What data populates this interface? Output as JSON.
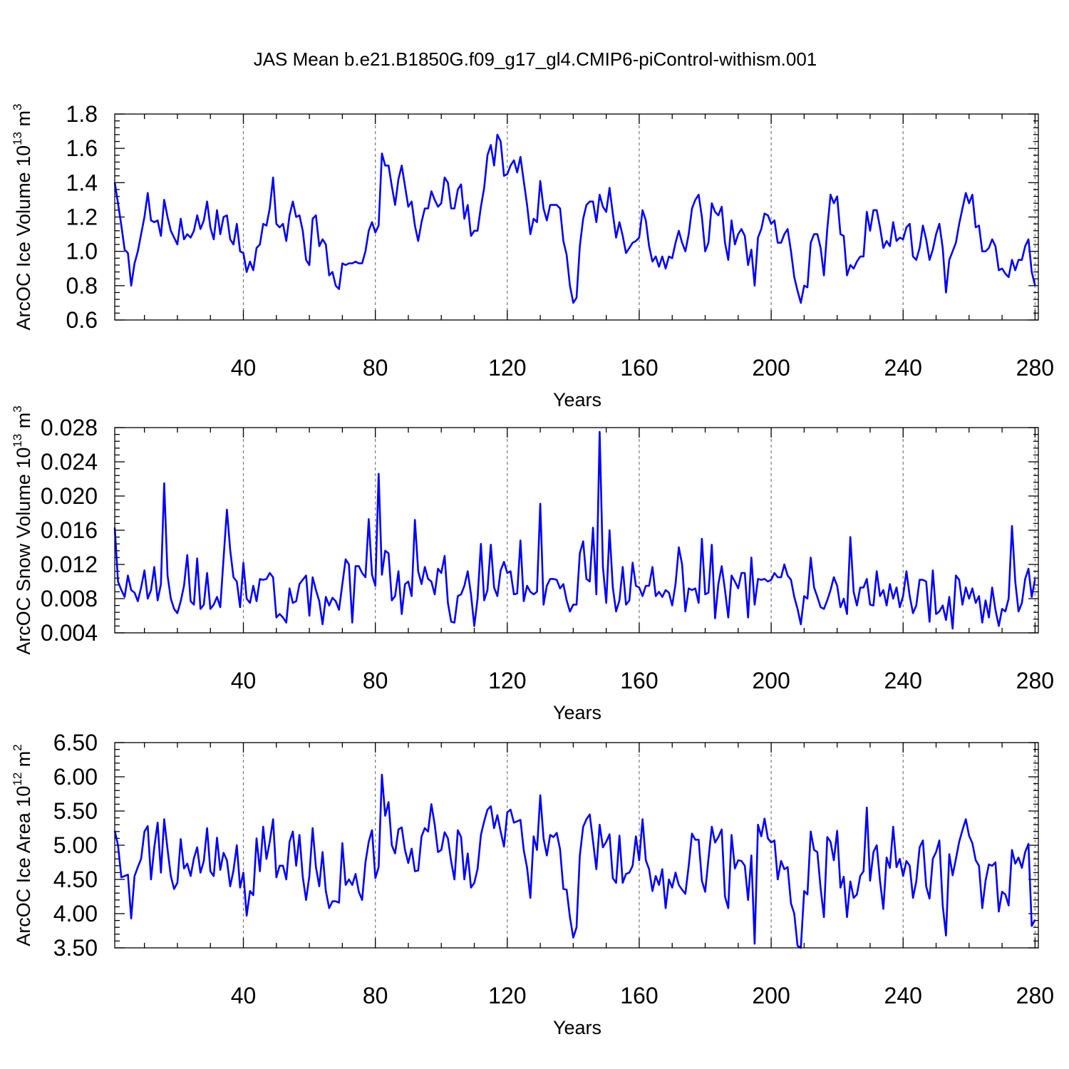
{
  "title": "JAS Mean b.e21.B1850G.f09_g17_gl4.CMIP6-piControl-withism.001",
  "line_color": "#0000ff",
  "chart_data": [
    {
      "type": "line",
      "title": "JAS Mean b.e21.B1850G.f09_g17_gl4.CMIP6-piControl-withism.001",
      "xlabel": "Years",
      "ylabel": "ArcOC Ice Volume 10",
      "ylabel_sup": "13",
      "ylabel_unit": "m",
      "ylabel_unit_sup": "3",
      "xlim": [
        1,
        281
      ],
      "ylim": [
        0.6,
        1.8
      ],
      "xticks": [
        40,
        80,
        120,
        160,
        200,
        240,
        280
      ],
      "xtick_labels": [
        "40",
        "80",
        "120",
        "160",
        "200",
        "240",
        "280"
      ],
      "yticks": [
        0.6,
        0.8,
        1.0,
        1.2,
        1.4,
        1.6,
        1.8
      ],
      "ytick_labels": [
        "0.6",
        "0.8",
        "1.0",
        "1.2",
        "1.4",
        "1.6",
        "1.8"
      ],
      "grid": "vertical dashed at major x ticks",
      "x_start": 1,
      "values": [
        1.4,
        1.28,
        1.15,
        1.01,
        0.99,
        0.8,
        0.93,
        1.0,
        1.1,
        1.2,
        1.34,
        1.18,
        1.17,
        1.18,
        1.09,
        1.3,
        1.2,
        1.12,
        1.08,
        1.04,
        1.19,
        1.07,
        1.1,
        1.08,
        1.12,
        1.21,
        1.13,
        1.18,
        1.29,
        1.14,
        1.07,
        1.24,
        1.1,
        1.2,
        1.21,
        1.07,
        1.04,
        1.16,
        1.0,
        0.99,
        0.88,
        0.94,
        0.89,
        1.02,
        1.04,
        1.16,
        1.15,
        1.25,
        1.43,
        1.16,
        1.14,
        1.16,
        1.06,
        1.21,
        1.29,
        1.2,
        1.21,
        1.12,
        0.95,
        0.92,
        1.19,
        1.21,
        1.03,
        1.07,
        1.04,
        0.86,
        0.88,
        0.8,
        0.78,
        0.93,
        0.92,
        0.93,
        0.93,
        0.94,
        0.93,
        0.93,
        1.0,
        1.12,
        1.17,
        1.11,
        1.15,
        1.57,
        1.5,
        1.5,
        1.38,
        1.27,
        1.42,
        1.5,
        1.38,
        1.26,
        1.29,
        1.15,
        1.06,
        1.17,
        1.25,
        1.25,
        1.35,
        1.3,
        1.26,
        1.28,
        1.43,
        1.4,
        1.25,
        1.25,
        1.36,
        1.39,
        1.19,
        1.27,
        1.09,
        1.12,
        1.12,
        1.26,
        1.37,
        1.56,
        1.62,
        1.5,
        1.68,
        1.64,
        1.44,
        1.45,
        1.5,
        1.53,
        1.46,
        1.55,
        1.41,
        1.27,
        1.1,
        1.19,
        1.17,
        1.41,
        1.25,
        1.18,
        1.27,
        1.27,
        1.27,
        1.25,
        1.06,
        0.98,
        0.8,
        0.7,
        0.73,
        1.03,
        1.19,
        1.27,
        1.29,
        1.29,
        1.17,
        1.33,
        1.26,
        1.23,
        1.37,
        1.22,
        1.08,
        1.17,
        1.09,
        0.99,
        1.02,
        1.05,
        1.06,
        1.08,
        1.24,
        1.18,
        1.03,
        0.94,
        0.97,
        0.91,
        0.97,
        0.9,
        0.97,
        0.96,
        1.05,
        1.12,
        1.05,
        1.0,
        1.1,
        1.25,
        1.3,
        1.33,
        1.2,
        1.0,
        1.05,
        1.28,
        1.23,
        1.21,
        1.26,
        1.05,
        0.95,
        1.18,
        1.04,
        1.1,
        1.13,
        1.09,
        0.92,
        1.01,
        0.8,
        1.08,
        1.13,
        1.22,
        1.21,
        1.16,
        1.18,
        1.05,
        1.05,
        1.1,
        1.13,
        1.0,
        0.85,
        0.77,
        0.7,
        0.8,
        0.79,
        1.05,
        1.1,
        1.1,
        1.02,
        0.86,
        1.13,
        1.33,
        1.28,
        1.32,
        1.1,
        1.09,
        0.86,
        0.92,
        0.9,
        0.94,
        0.97,
        0.97,
        1.23,
        1.12,
        1.24,
        1.24,
        1.14,
        1.02,
        1.06,
        1.03,
        1.17,
        1.06,
        1.08,
        1.07,
        1.14,
        1.16,
        0.97,
        0.95,
        1.02,
        1.15,
        1.07,
        0.95,
        1.01,
        1.1,
        1.16,
        1.02,
        0.76,
        0.95,
        1.0,
        1.05,
        1.16,
        1.25,
        1.34,
        1.28,
        1.33,
        1.14,
        1.15,
        1.0,
        1.0,
        1.02,
        1.07,
        1.03,
        0.89,
        0.9,
        0.87,
        0.85,
        0.95,
        0.89,
        0.95,
        0.95,
        1.03,
        1.07,
        0.88,
        0.8
      ]
    },
    {
      "type": "line",
      "xlabel": "Years",
      "ylabel": "ArcOC Snow Volume 10",
      "ylabel_sup": "13",
      "ylabel_unit": "m",
      "ylabel_unit_sup": "3",
      "xlim": [
        1,
        281
      ],
      "ylim": [
        0.004,
        0.028
      ],
      "xticks": [
        40,
        80,
        120,
        160,
        200,
        240,
        280
      ],
      "xtick_labels": [
        "40",
        "80",
        "120",
        "160",
        "200",
        "240",
        "280"
      ],
      "yticks": [
        0.004,
        0.008,
        0.012,
        0.016,
        0.02,
        0.024,
        0.028
      ],
      "ytick_labels": [
        "0.004",
        "0.008",
        "0.012",
        "0.016",
        "0.020",
        "0.024",
        "0.028"
      ],
      "grid": "vertical dashed at major x ticks",
      "x_start": 1,
      "values": [
        0.0163,
        0.01,
        0.009,
        0.0082,
        0.0107,
        0.009,
        0.0087,
        0.0077,
        0.0093,
        0.0113,
        0.008,
        0.009,
        0.0117,
        0.0078,
        0.0097,
        0.0215,
        0.0107,
        0.008,
        0.0068,
        0.0063,
        0.0077,
        0.0095,
        0.0131,
        0.0077,
        0.0073,
        0.0127,
        0.0068,
        0.0073,
        0.011,
        0.0068,
        0.0073,
        0.0082,
        0.007,
        0.0127,
        0.0184,
        0.0137,
        0.0105,
        0.01,
        0.007,
        0.0122,
        0.008,
        0.0075,
        0.0095,
        0.0077,
        0.0103,
        0.0102,
        0.0103,
        0.011,
        0.0105,
        0.0058,
        0.0062,
        0.0058,
        0.0052,
        0.0092,
        0.0075,
        0.0077,
        0.0097,
        0.0102,
        0.0107,
        0.006,
        0.0105,
        0.009,
        0.0077,
        0.005,
        0.0082,
        0.0072,
        0.0081,
        0.0077,
        0.0067,
        0.0097,
        0.0126,
        0.012,
        0.0052,
        0.0118,
        0.0118,
        0.011,
        0.0105,
        0.0173,
        0.0108,
        0.0095,
        0.0226,
        0.0108,
        0.0136,
        0.0133,
        0.0078,
        0.0083,
        0.0112,
        0.0062,
        0.0097,
        0.01,
        0.0083,
        0.0172,
        0.0112,
        0.0097,
        0.0117,
        0.0103,
        0.01,
        0.0085,
        0.0115,
        0.011,
        0.013,
        0.0075,
        0.0053,
        0.0052,
        0.0083,
        0.0085,
        0.0095,
        0.0112,
        0.0085,
        0.0048,
        0.008,
        0.0144,
        0.0078,
        0.009,
        0.0143,
        0.0093,
        0.0083,
        0.0113,
        0.0123,
        0.011,
        0.0112,
        0.0085,
        0.0086,
        0.0148,
        0.0077,
        0.0095,
        0.0088,
        0.0085,
        0.0088,
        0.0191,
        0.0073,
        0.0095,
        0.0103,
        0.0103,
        0.0102,
        0.0092,
        0.0097,
        0.0078,
        0.0065,
        0.0073,
        0.0073,
        0.0133,
        0.0147,
        0.0103,
        0.01,
        0.0163,
        0.0085,
        0.0275,
        0.0117,
        0.0075,
        0.016,
        0.0093,
        0.0065,
        0.0078,
        0.0117,
        0.0073,
        0.0078,
        0.0122,
        0.0095,
        0.0093,
        0.0083,
        0.0095,
        0.0095,
        0.0117,
        0.0083,
        0.0088,
        0.0082,
        0.009,
        0.0087,
        0.0072,
        0.0097,
        0.014,
        0.012,
        0.0065,
        0.0092,
        0.009,
        0.0092,
        0.0075,
        0.015,
        0.0085,
        0.0087,
        0.0143,
        0.0057,
        0.0097,
        0.0118,
        0.009,
        0.0058,
        0.0107,
        0.01,
        0.0092,
        0.011,
        0.011,
        0.0058,
        0.0128,
        0.0073,
        0.0103,
        0.0102,
        0.0103,
        0.01,
        0.0102,
        0.011,
        0.0105,
        0.0105,
        0.012,
        0.0107,
        0.0102,
        0.0082,
        0.0068,
        0.005,
        0.0083,
        0.008,
        0.0128,
        0.0093,
        0.0082,
        0.007,
        0.0068,
        0.0078,
        0.009,
        0.0105,
        0.0095,
        0.007,
        0.008,
        0.0062,
        0.0152,
        0.0088,
        0.0072,
        0.0093,
        0.0093,
        0.0103,
        0.0073,
        0.0072,
        0.0112,
        0.0083,
        0.009,
        0.0072,
        0.0097,
        0.008,
        0.0093,
        0.007,
        0.0083,
        0.0112,
        0.0083,
        0.0063,
        0.0072,
        0.0102,
        0.0102,
        0.01,
        0.0053,
        0.0113,
        0.0062,
        0.0065,
        0.0072,
        0.0055,
        0.0082,
        0.0045,
        0.0107,
        0.0102,
        0.0073,
        0.0093,
        0.008,
        0.0092,
        0.0075,
        0.0083,
        0.0052,
        0.0078,
        0.0058,
        0.0093,
        0.0067,
        0.0048,
        0.0068,
        0.0065,
        0.008,
        0.0165,
        0.01,
        0.0065,
        0.0075,
        0.0103,
        0.0115,
        0.0082,
        0.0103
      ]
    },
    {
      "type": "line",
      "xlabel": "Years",
      "ylabel": "ArcOC Ice Area 10",
      "ylabel_sup": "12",
      "ylabel_unit": "m",
      "ylabel_unit_sup": "2",
      "xlim": [
        1,
        281
      ],
      "ylim": [
        3.5,
        6.5
      ],
      "xticks": [
        40,
        80,
        120,
        160,
        200,
        240,
        280
      ],
      "xtick_labels": [
        "40",
        "80",
        "120",
        "160",
        "200",
        "240",
        "280"
      ],
      "yticks": [
        3.5,
        4.0,
        4.5,
        5.0,
        5.5,
        6.0,
        6.5
      ],
      "ytick_labels": [
        "3.50",
        "4.00",
        "4.50",
        "5.00",
        "5.50",
        "6.00",
        "6.50"
      ],
      "grid": "vertical dashed at major x ticks",
      "x_start": 1,
      "values": [
        5.21,
        5.0,
        4.53,
        4.55,
        4.57,
        3.93,
        4.55,
        4.68,
        4.8,
        5.2,
        5.28,
        4.5,
        4.97,
        5.33,
        4.6,
        5.38,
        4.94,
        4.55,
        4.36,
        4.45,
        5.09,
        4.66,
        4.73,
        4.55,
        4.81,
        4.97,
        4.6,
        4.77,
        5.25,
        4.62,
        4.55,
        5.11,
        4.64,
        4.89,
        4.78,
        4.4,
        4.63,
        5.0,
        4.38,
        4.6,
        3.97,
        4.33,
        4.27,
        5.1,
        4.62,
        5.27,
        4.8,
        5.05,
        5.38,
        4.53,
        4.7,
        4.7,
        4.5,
        5.05,
        5.2,
        4.7,
        5.15,
        4.54,
        4.2,
        4.55,
        5.25,
        4.68,
        4.4,
        4.9,
        4.33,
        4.08,
        4.18,
        4.18,
        4.16,
        5.03,
        4.42,
        4.5,
        4.42,
        4.58,
        4.32,
        4.2,
        4.75,
        5.05,
        5.22,
        4.52,
        4.68,
        6.03,
        5.43,
        5.63,
        5.0,
        4.88,
        5.23,
        5.26,
        4.93,
        4.74,
        4.95,
        4.62,
        4.63,
        5.13,
        5.25,
        5.2,
        5.6,
        5.3,
        4.9,
        4.93,
        5.19,
        5.1,
        4.76,
        4.5,
        5.22,
        5.12,
        4.5,
        4.88,
        4.38,
        4.45,
        4.65,
        5.15,
        5.35,
        5.52,
        5.57,
        5.25,
        5.44,
        5.2,
        4.98,
        5.48,
        5.52,
        5.33,
        5.35,
        5.37,
        4.93,
        4.67,
        4.23,
        5.13,
        4.93,
        5.73,
        5.1,
        4.85,
        5.15,
        5.12,
        5.18,
        4.94,
        4.36,
        4.35,
        3.95,
        3.65,
        3.8,
        4.85,
        5.27,
        5.38,
        5.45,
        5.06,
        4.65,
        5.3,
        4.97,
        5.05,
        5.16,
        4.52,
        4.45,
        5.14,
        4.45,
        4.58,
        4.6,
        4.7,
        5.13,
        4.78,
        5.38,
        4.78,
        4.65,
        4.33,
        4.55,
        4.42,
        4.65,
        4.08,
        4.5,
        4.38,
        4.6,
        4.42,
        4.35,
        4.29,
        4.7,
        5.17,
        5.08,
        5.08,
        4.48,
        4.32,
        4.8,
        5.27,
        5.04,
        5.12,
        5.23,
        4.25,
        4.08,
        5.15,
        4.66,
        4.78,
        4.77,
        4.7,
        4.2,
        4.85,
        3.56,
        5.3,
        5.13,
        5.39,
        5.1,
        5.04,
        5.07,
        4.5,
        4.77,
        4.65,
        4.68,
        4.15,
        4.0,
        3.53,
        3.5,
        4.33,
        4.28,
        5.2,
        4.93,
        4.9,
        4.37,
        3.95,
        5.12,
        5.05,
        4.78,
        5.21,
        4.38,
        4.54,
        3.95,
        4.47,
        4.23,
        4.28,
        4.55,
        4.62,
        5.55,
        4.48,
        4.9,
        5.0,
        4.48,
        4.07,
        4.82,
        4.67,
        5.27,
        4.68,
        4.8,
        4.55,
        4.77,
        4.7,
        4.23,
        4.47,
        4.97,
        5.07,
        4.4,
        4.22,
        4.8,
        4.9,
        5.07,
        4.12,
        3.68,
        4.87,
        4.56,
        4.8,
        5.05,
        5.22,
        5.38,
        5.14,
        5.03,
        4.78,
        4.7,
        4.08,
        4.48,
        4.72,
        4.7,
        4.75,
        4.03,
        4.32,
        4.28,
        4.12,
        4.93,
        4.73,
        4.82,
        4.67,
        4.9,
        5.02,
        3.82,
        3.91
      ]
    }
  ]
}
